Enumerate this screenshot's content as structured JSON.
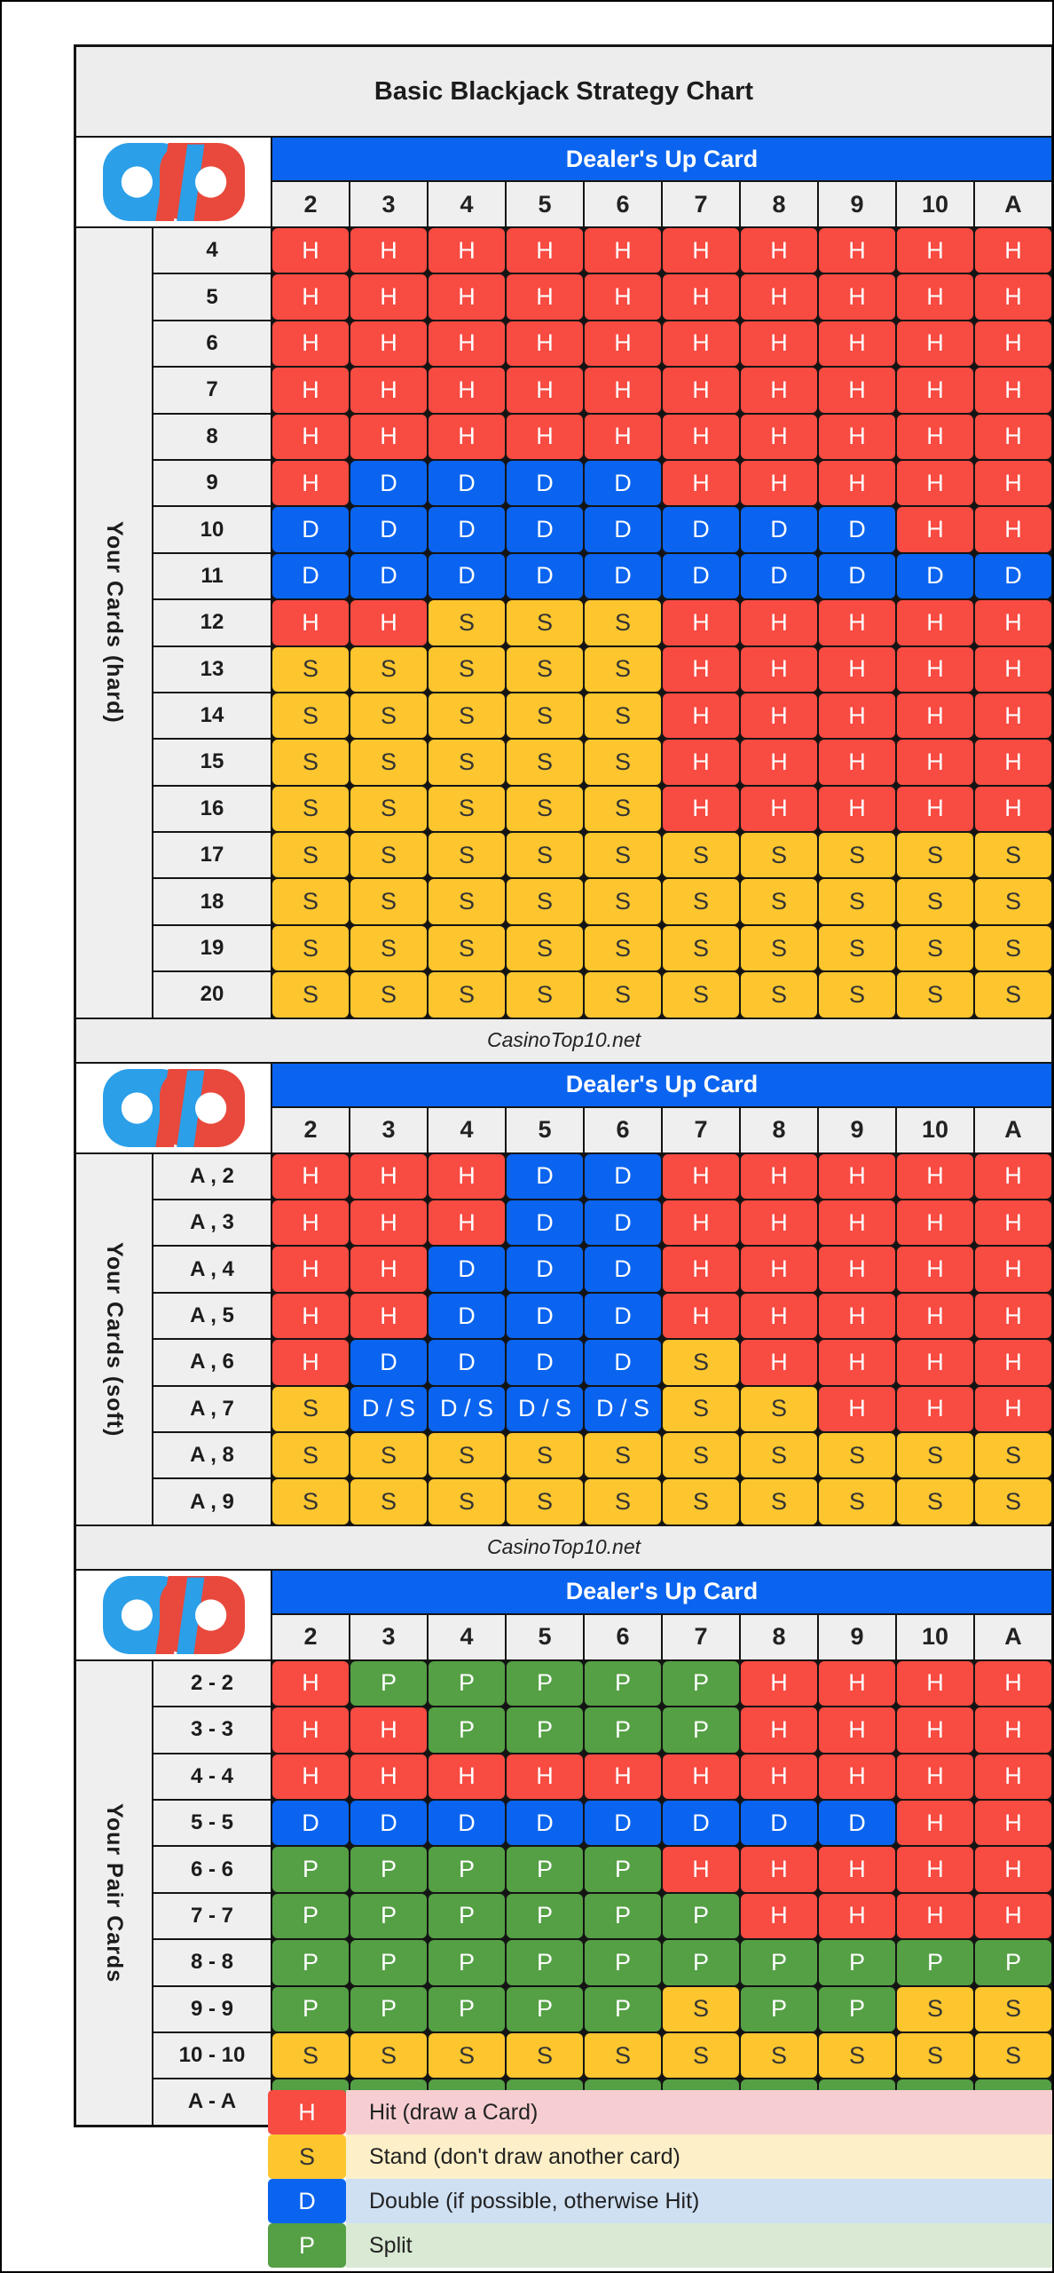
{
  "page": {
    "title": "Basic Blackjack Strategy Chart",
    "watermark": "CasinoTop10.net"
  },
  "header": {
    "dealer_label": "Dealer's Up Card",
    "dealer_cards": [
      "2",
      "3",
      "4",
      "5",
      "6",
      "7",
      "8",
      "9",
      "10",
      "A"
    ]
  },
  "colors": {
    "hit": "#f84b42",
    "stand": "#fdc62e",
    "double": "#0a64f0",
    "split": "#55a045",
    "grid_line": "#141414",
    "header_gray": "#ededed",
    "label_gray": "#efefef",
    "banner_blue": "#0a64f0"
  },
  "chart_data": {
    "type": "table",
    "title": "Basic Blackjack Strategy Chart",
    "columns_header": "Dealer's Up Card",
    "columns": [
      "2",
      "3",
      "4",
      "5",
      "6",
      "7",
      "8",
      "9",
      "10",
      "A"
    ],
    "action_styles": {
      "H": "hit",
      "S": "stand",
      "D": "double",
      "D / S": "double",
      "P": "split"
    },
    "sections": [
      {
        "id": "hard",
        "side_label": "Your Cards (hard)",
        "rows": [
          {
            "label": "4",
            "actions": [
              "H",
              "H",
              "H",
              "H",
              "H",
              "H",
              "H",
              "H",
              "H",
              "H"
            ]
          },
          {
            "label": "5",
            "actions": [
              "H",
              "H",
              "H",
              "H",
              "H",
              "H",
              "H",
              "H",
              "H",
              "H"
            ]
          },
          {
            "label": "6",
            "actions": [
              "H",
              "H",
              "H",
              "H",
              "H",
              "H",
              "H",
              "H",
              "H",
              "H"
            ]
          },
          {
            "label": "7",
            "actions": [
              "H",
              "H",
              "H",
              "H",
              "H",
              "H",
              "H",
              "H",
              "H",
              "H"
            ]
          },
          {
            "label": "8",
            "actions": [
              "H",
              "H",
              "H",
              "H",
              "H",
              "H",
              "H",
              "H",
              "H",
              "H"
            ]
          },
          {
            "label": "9",
            "actions": [
              "H",
              "D",
              "D",
              "D",
              "D",
              "H",
              "H",
              "H",
              "H",
              "H"
            ]
          },
          {
            "label": "10",
            "actions": [
              "D",
              "D",
              "D",
              "D",
              "D",
              "D",
              "D",
              "D",
              "H",
              "H"
            ]
          },
          {
            "label": "11",
            "actions": [
              "D",
              "D",
              "D",
              "D",
              "D",
              "D",
              "D",
              "D",
              "D",
              "D"
            ]
          },
          {
            "label": "12",
            "actions": [
              "H",
              "H",
              "S",
              "S",
              "S",
              "H",
              "H",
              "H",
              "H",
              "H"
            ]
          },
          {
            "label": "13",
            "actions": [
              "S",
              "S",
              "S",
              "S",
              "S",
              "H",
              "H",
              "H",
              "H",
              "H"
            ]
          },
          {
            "label": "14",
            "actions": [
              "S",
              "S",
              "S",
              "S",
              "S",
              "H",
              "H",
              "H",
              "H",
              "H"
            ]
          },
          {
            "label": "15",
            "actions": [
              "S",
              "S",
              "S",
              "S",
              "S",
              "H",
              "H",
              "H",
              "H",
              "H"
            ]
          },
          {
            "label": "16",
            "actions": [
              "S",
              "S",
              "S",
              "S",
              "S",
              "H",
              "H",
              "H",
              "H",
              "H"
            ]
          },
          {
            "label": "17",
            "actions": [
              "S",
              "S",
              "S",
              "S",
              "S",
              "S",
              "S",
              "S",
              "S",
              "S"
            ]
          },
          {
            "label": "18",
            "actions": [
              "S",
              "S",
              "S",
              "S",
              "S",
              "S",
              "S",
              "S",
              "S",
              "S"
            ]
          },
          {
            "label": "19",
            "actions": [
              "S",
              "S",
              "S",
              "S",
              "S",
              "S",
              "S",
              "S",
              "S",
              "S"
            ]
          },
          {
            "label": "20",
            "actions": [
              "S",
              "S",
              "S",
              "S",
              "S",
              "S",
              "S",
              "S",
              "S",
              "S"
            ]
          }
        ]
      },
      {
        "id": "soft",
        "side_label": "Your Cards (soft)",
        "rows": [
          {
            "label": "A , 2",
            "actions": [
              "H",
              "H",
              "H",
              "D",
              "D",
              "H",
              "H",
              "H",
              "H",
              "H"
            ]
          },
          {
            "label": "A , 3",
            "actions": [
              "H",
              "H",
              "H",
              "D",
              "D",
              "H",
              "H",
              "H",
              "H",
              "H"
            ]
          },
          {
            "label": "A , 4",
            "actions": [
              "H",
              "H",
              "D",
              "D",
              "D",
              "H",
              "H",
              "H",
              "H",
              "H"
            ]
          },
          {
            "label": "A , 5",
            "actions": [
              "H",
              "H",
              "D",
              "D",
              "D",
              "H",
              "H",
              "H",
              "H",
              "H"
            ]
          },
          {
            "label": "A , 6",
            "actions": [
              "H",
              "D",
              "D",
              "D",
              "D",
              "S",
              "H",
              "H",
              "H",
              "H"
            ]
          },
          {
            "label": "A , 7",
            "actions": [
              "S",
              "D / S",
              "D / S",
              "D / S",
              "D / S",
              "S",
              "S",
              "H",
              "H",
              "H"
            ]
          },
          {
            "label": "A , 8",
            "actions": [
              "S",
              "S",
              "S",
              "S",
              "S",
              "S",
              "S",
              "S",
              "S",
              "S"
            ]
          },
          {
            "label": "A , 9",
            "actions": [
              "S",
              "S",
              "S",
              "S",
              "S",
              "S",
              "S",
              "S",
              "S",
              "S"
            ]
          }
        ]
      },
      {
        "id": "pairs",
        "side_label": "Your Pair Cards",
        "rows": [
          {
            "label": "2 - 2",
            "actions": [
              "H",
              "P",
              "P",
              "P",
              "P",
              "P",
              "H",
              "H",
              "H",
              "H"
            ]
          },
          {
            "label": "3 - 3",
            "actions": [
              "H",
              "H",
              "P",
              "P",
              "P",
              "P",
              "H",
              "H",
              "H",
              "H"
            ]
          },
          {
            "label": "4 - 4",
            "actions": [
              "H",
              "H",
              "H",
              "H",
              "H",
              "H",
              "H",
              "H",
              "H",
              "H"
            ]
          },
          {
            "label": "5 - 5",
            "actions": [
              "D",
              "D",
              "D",
              "D",
              "D",
              "D",
              "D",
              "D",
              "H",
              "H"
            ]
          },
          {
            "label": "6 - 6",
            "actions": [
              "P",
              "P",
              "P",
              "P",
              "P",
              "H",
              "H",
              "H",
              "H",
              "H"
            ]
          },
          {
            "label": "7 - 7",
            "actions": [
              "P",
              "P",
              "P",
              "P",
              "P",
              "P",
              "H",
              "H",
              "H",
              "H"
            ]
          },
          {
            "label": "8 - 8",
            "actions": [
              "P",
              "P",
              "P",
              "P",
              "P",
              "P",
              "P",
              "P",
              "P",
              "P"
            ]
          },
          {
            "label": "9 - 9",
            "actions": [
              "P",
              "P",
              "P",
              "P",
              "P",
              "S",
              "P",
              "P",
              "S",
              "S"
            ]
          },
          {
            "label": "10 - 10",
            "actions": [
              "S",
              "S",
              "S",
              "S",
              "S",
              "S",
              "S",
              "S",
              "S",
              "S"
            ]
          },
          {
            "label": "A - A",
            "actions": [
              "P",
              "P",
              "P",
              "P",
              "P",
              "P",
              "P",
              "P",
              "P",
              "P"
            ]
          }
        ]
      }
    ],
    "legend": [
      {
        "code": "H",
        "label": "Hit (draw a Card)",
        "band_color": "#f6ced2"
      },
      {
        "code": "S",
        "label": "Stand (don't draw another card)",
        "band_color": "#fdf0c8"
      },
      {
        "code": "D",
        "label": "Double (if possible, otherwise Hit)",
        "band_color": "#cfe0f3"
      },
      {
        "code": "P",
        "label": "Split",
        "band_color": "#d9e9d3"
      }
    ]
  }
}
